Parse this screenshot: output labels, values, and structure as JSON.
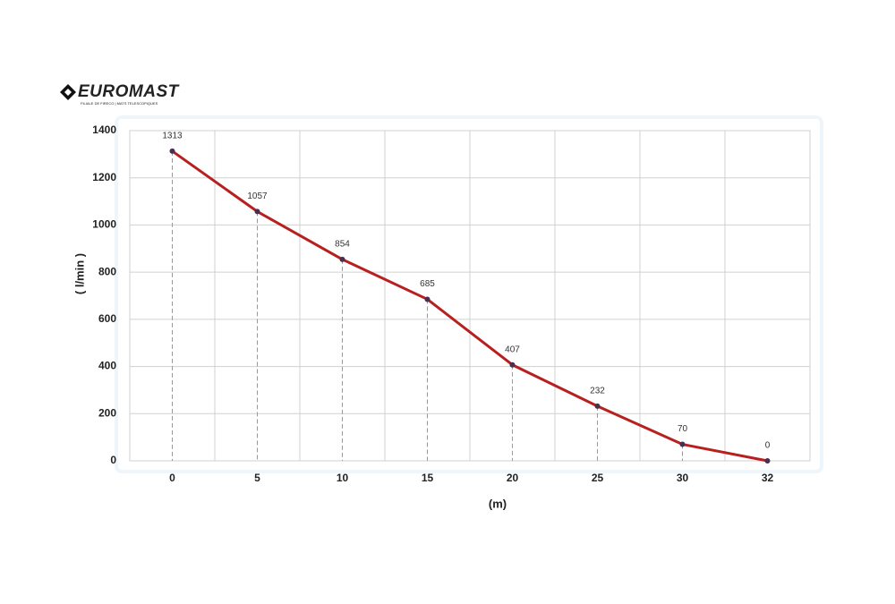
{
  "logo": {
    "name": "EUROMAST",
    "tagline": "FILIALE DE FIRECO | MATS TELESCOPIQUES"
  },
  "chart_data": {
    "type": "line",
    "categories": [
      "0",
      "5",
      "10",
      "15",
      "20",
      "25",
      "30",
      "32"
    ],
    "values": [
      1313,
      1057,
      854,
      685,
      407,
      232,
      70,
      0
    ],
    "color": "#b81f1f",
    "marker_color": "#4a2f4f",
    "ylim": [
      0,
      1400
    ],
    "yticks": [
      0,
      200,
      400,
      600,
      800,
      1000,
      1200,
      1400
    ],
    "grid": true,
    "data_labels": true,
    "drop_lines": true,
    "x_label": "(m)",
    "y_label": "( l/min )"
  }
}
